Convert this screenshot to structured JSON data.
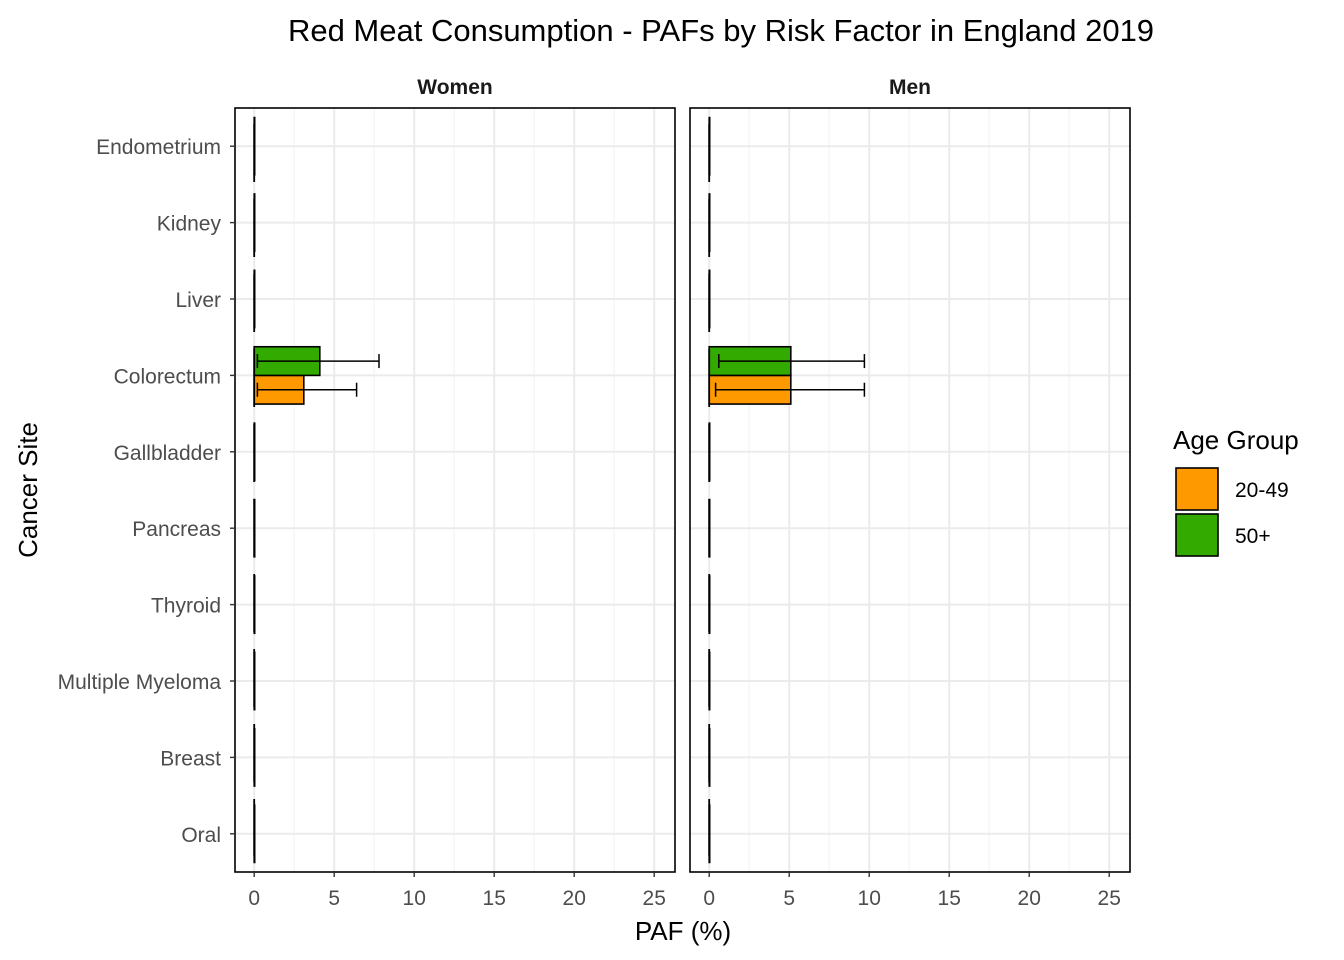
{
  "chart_data": {
    "type": "bar",
    "orientation": "horizontal",
    "title": "Red Meat Consumption  - PAFs by Risk Factor in England 2019",
    "xlabel": "PAF (%)",
    "ylabel": "Cancer Site",
    "xlim": [
      -1.2,
      26.3
    ],
    "xticks": [
      "0",
      "5",
      "10",
      "15",
      "20",
      "25"
    ],
    "categories": [
      "Endometrium",
      "Kidney",
      "Liver",
      "Colorectum",
      "Gallbladder",
      "Pancreas",
      "Thyroid",
      "Multiple Myeloma",
      "Breast",
      "Oral"
    ],
    "grid": true,
    "legend": {
      "title": "Age Group",
      "position": "right",
      "entries": [
        {
          "name": "20-49",
          "color": "#FF9900"
        },
        {
          "name": "50+",
          "color": "#33AA00"
        }
      ]
    },
    "facets": [
      {
        "label": "Women",
        "series": [
          {
            "name": "20-49",
            "values": [
              0,
              0,
              0,
              3.1,
              0,
              0,
              0,
              0,
              0,
              0
            ],
            "lower": [
              0,
              0,
              0,
              0.2,
              0,
              0,
              0,
              0,
              0,
              0
            ],
            "upper": [
              0,
              0,
              0,
              6.4,
              0,
              0,
              0,
              0,
              0,
              0
            ]
          },
          {
            "name": "50+",
            "values": [
              0,
              0,
              0,
              4.1,
              0,
              0,
              0,
              0,
              0,
              0
            ],
            "lower": [
              0,
              0,
              0,
              0.2,
              0,
              0,
              0,
              0,
              0,
              0
            ],
            "upper": [
              0,
              0,
              0,
              7.8,
              0,
              0,
              0,
              0,
              0,
              0
            ]
          }
        ]
      },
      {
        "label": "Men",
        "series": [
          {
            "name": "20-49",
            "values": [
              0,
              0,
              0,
              5.1,
              0,
              0,
              0,
              0,
              0,
              0
            ],
            "lower": [
              0,
              0,
              0,
              0.4,
              0,
              0,
              0,
              0,
              0,
              0
            ],
            "upper": [
              0,
              0,
              0,
              9.7,
              0,
              0,
              0,
              0,
              0,
              0
            ]
          },
          {
            "name": "50+",
            "values": [
              0,
              0,
              0,
              5.1,
              0,
              0,
              0,
              0,
              0,
              0
            ],
            "lower": [
              0,
              0,
              0,
              0.6,
              0,
              0,
              0,
              0,
              0,
              0
            ],
            "upper": [
              0,
              0,
              0,
              9.7,
              0,
              0,
              0,
              0,
              0,
              0
            ]
          }
        ]
      }
    ]
  }
}
